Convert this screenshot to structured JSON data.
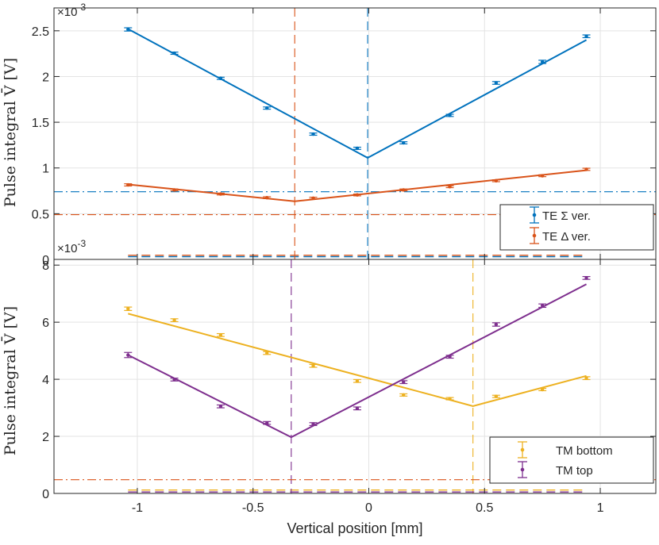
{
  "chart_data": [
    {
      "type": "scatter",
      "name": "top-panel",
      "xlim": [
        -1.36,
        1.24
      ],
      "ylim": [
        0,
        2.75
      ],
      "yticks": [
        "0",
        "0.5",
        "1",
        "1.5",
        "2",
        "2.5"
      ],
      "ytick_values": [
        0,
        0.5,
        1,
        1.5,
        2,
        2.5
      ],
      "yexp": "×10",
      "yexp_power": "-3",
      "ylabel": "Pulse integral V̄ [V]",
      "grid": true,
      "legend_position": "bottom-right",
      "series": [
        {
          "name": "TE Σ ver.",
          "color": "#0072BD",
          "x": [
            -1.04,
            -0.84,
            -0.64,
            -0.44,
            -0.24,
            -0.05,
            0.15,
            0.35,
            0.55,
            0.75,
            0.94
          ],
          "y": [
            2.515,
            2.255,
            1.98,
            1.655,
            1.37,
            1.215,
            1.275,
            1.575,
            1.93,
            2.16,
            2.44
          ],
          "err": [
            0.018,
            0.012,
            0.012,
            0.012,
            0.012,
            0.012,
            0.012,
            0.012,
            0.015,
            0.018,
            0.015
          ],
          "fit": [
            [
              -1.04,
              2.52
            ],
            [
              -0.005,
              1.11
            ],
            [
              0.94,
              2.4
            ]
          ],
          "vline": -0.005,
          "hline": 0.74,
          "baseline": 0.03
        },
        {
          "name": "TE Δ ver.",
          "color": "#D95319",
          "x": [
            -1.04,
            -0.84,
            -0.64,
            -0.44,
            -0.24,
            -0.05,
            0.15,
            0.35,
            0.55,
            0.75,
            0.94
          ],
          "y": [
            0.815,
            0.76,
            0.715,
            0.675,
            0.67,
            0.705,
            0.76,
            0.795,
            0.86,
            0.915,
            0.985
          ],
          "err": [
            0.012,
            0.01,
            0.01,
            0.01,
            0.01,
            0.01,
            0.01,
            0.01,
            0.01,
            0.01,
            0.012
          ],
          "fit": [
            [
              -1.04,
              0.82
            ],
            [
              -0.32,
              0.635
            ],
            [
              0.94,
              0.975
            ]
          ],
          "vline": -0.32,
          "hline": 0.49,
          "baseline": 0.045
        }
      ]
    },
    {
      "type": "scatter",
      "name": "bottom-panel",
      "xlim": [
        -1.36,
        1.24
      ],
      "ylim": [
        0,
        8.2
      ],
      "yticks": [
        "0",
        "2",
        "4",
        "6",
        "8"
      ],
      "ytick_values": [
        0,
        2,
        4,
        6,
        8
      ],
      "yexp": "×10",
      "yexp_power": "-3",
      "ylabel": "Pulse integral V̄ [V]",
      "xlabel": "Vertical position [mm]",
      "xticks": [
        "-1",
        "-0.5",
        "0",
        "0.5",
        "1"
      ],
      "xtick_values": [
        -1,
        -0.5,
        0,
        0.5,
        1
      ],
      "grid": true,
      "legend_position": "bottom-right",
      "hline_shared": 0.48,
      "hline_shared_color": "#D95319",
      "series": [
        {
          "name": "TM bottom",
          "color": "#EDB120",
          "x": [
            -1.04,
            -0.84,
            -0.64,
            -0.44,
            -0.24,
            -0.05,
            0.15,
            0.35,
            0.55,
            0.75,
            0.94
          ],
          "y": [
            6.47,
            6.07,
            5.55,
            4.92,
            4.47,
            3.94,
            3.45,
            3.32,
            3.4,
            3.64,
            4.04
          ],
          "err": [
            0.06,
            0.05,
            0.05,
            0.05,
            0.05,
            0.05,
            0.04,
            0.04,
            0.04,
            0.04,
            0.05
          ],
          "fit": [
            [
              -1.04,
              6.3
            ],
            [
              0.45,
              3.06
            ],
            [
              0.94,
              4.12
            ]
          ],
          "vline": 0.45,
          "baseline": 0.12
        },
        {
          "name": "TM top",
          "color": "#7E2F8E",
          "x": [
            -1.04,
            -0.84,
            -0.64,
            -0.44,
            -0.24,
            -0.05,
            0.15,
            0.35,
            0.55,
            0.75,
            0.94
          ],
          "y": [
            4.85,
            3.99,
            3.05,
            2.47,
            2.43,
            2.98,
            3.9,
            4.79,
            5.92,
            6.58,
            7.55
          ],
          "err": [
            0.09,
            0.05,
            0.05,
            0.05,
            0.05,
            0.05,
            0.05,
            0.05,
            0.06,
            0.06,
            0.05
          ],
          "fit": [
            [
              -1.04,
              4.85
            ],
            [
              -0.335,
              1.97
            ],
            [
              0.94,
              7.33
            ]
          ],
          "vline": -0.335,
          "baseline": 0.05
        }
      ]
    }
  ]
}
